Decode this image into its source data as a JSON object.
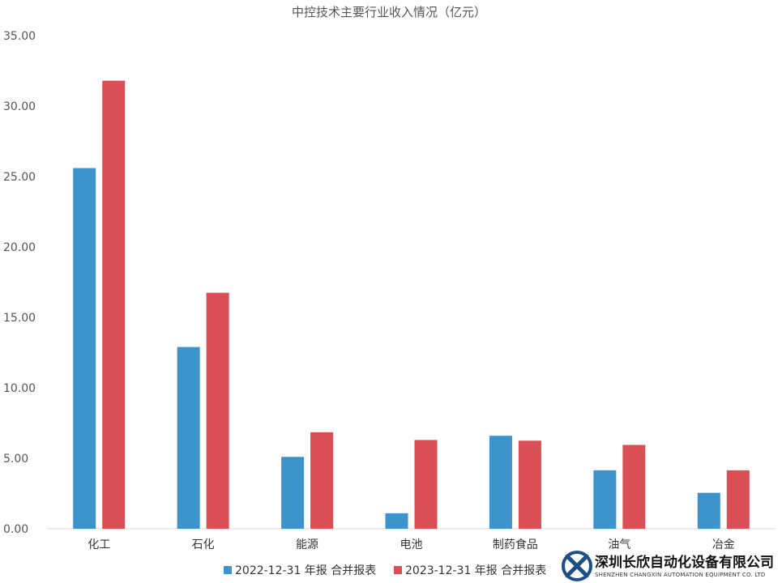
{
  "chart_data": {
    "type": "bar",
    "title": "中控技术主要行业收入情况（亿元）",
    "categories": [
      "化工",
      "石化",
      "能源",
      "电池",
      "制药食品",
      "油气",
      "冶金"
    ],
    "series": [
      {
        "name": "2022-12-31 年报 合并报表",
        "color": "#3d93cb",
        "values": [
          25.6,
          12.9,
          5.1,
          1.1,
          6.6,
          4.15,
          2.55
        ]
      },
      {
        "name": "2023-12-31 年报 合并报表",
        "color": "#d94f55",
        "values": [
          31.8,
          16.75,
          6.85,
          6.3,
          6.25,
          5.95,
          4.15
        ]
      }
    ],
    "ylim": [
      0,
      35
    ],
    "yticks": [
      "0.00",
      "5.00",
      "10.00",
      "15.00",
      "20.00",
      "25.00",
      "30.00",
      "35.00"
    ],
    "xlabel": "",
    "ylabel": "",
    "legend_position": "bottom",
    "grid": false
  },
  "watermark": {
    "name": "深圳长欣自动化设备有限公司",
    "subtitle": "SHENZHEN CHANGXIN AUTOMATION EQUIPMENT CO. LTD",
    "logo_icon": "cx-logo-icon",
    "logo_color": "#1d4f86"
  }
}
